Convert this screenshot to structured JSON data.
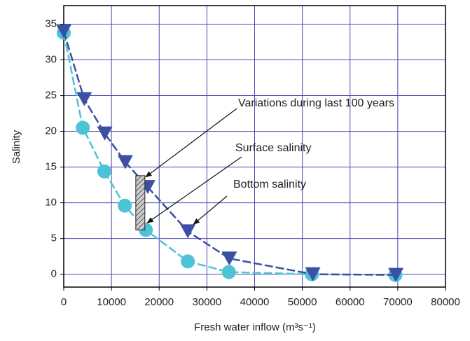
{
  "chart_data": {
    "type": "line",
    "xlabel": "Fresh water inflow (m³s⁻¹)",
    "ylabel": "Salinity",
    "xlim": [
      0,
      80000
    ],
    "ylim": [
      -1.8,
      37.6
    ],
    "xticks": [
      0,
      10000,
      20000,
      30000,
      40000,
      50000,
      60000,
      70000,
      80000
    ],
    "yticks": [
      0,
      5,
      10,
      15,
      20,
      25,
      30,
      35
    ],
    "grid": true,
    "grid_color": "#4848b0",
    "series": [
      {
        "name": "Surface salinity",
        "color": "#4ec3d6",
        "marker": "circle",
        "x": [
          0,
          4000,
          8500,
          12800,
          17200,
          26000,
          34600,
          52000,
          69500
        ],
        "values": [
          33.8,
          20.5,
          14.4,
          9.6,
          6.2,
          1.8,
          0.3,
          0,
          -0.1
        ]
      },
      {
        "name": "Bottom salinity",
        "color": "#3c4fa3",
        "marker": "triangle",
        "x": [
          0,
          4300,
          8600,
          12900,
          17600,
          26000,
          34700,
          52200,
          69600
        ],
        "values": [
          34,
          24.5,
          19.7,
          15.7,
          12.2,
          6,
          2.2,
          0,
          -0.1
        ]
      }
    ],
    "range_bar": {
      "label": "Variations during last 100 years",
      "x": [
        15100,
        17000
      ],
      "y": [
        6.2,
        13.8
      ]
    }
  }
}
